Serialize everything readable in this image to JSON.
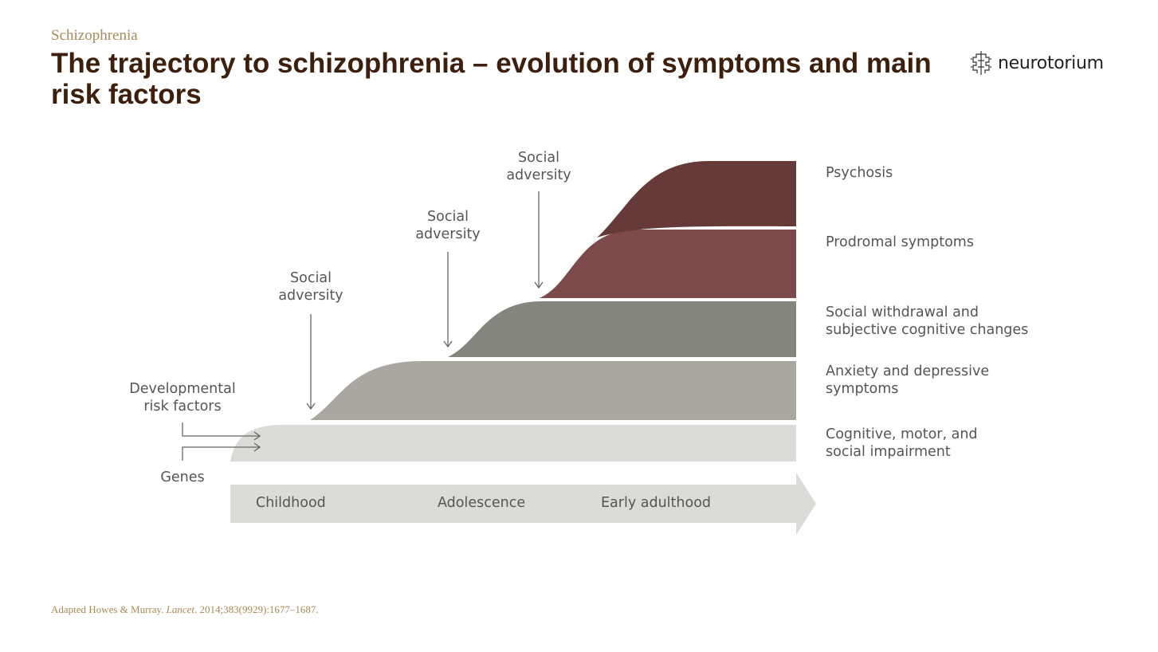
{
  "header": {
    "category": "Schizophrenia",
    "title": "The trajectory to schizophrenia  – evolution of symptoms and main risk factors",
    "logo_text": "neurotorium"
  },
  "diagram": {
    "stages": [
      {
        "label": "Psychosis",
        "color": "#653a38"
      },
      {
        "label": "Prodromal symptoms",
        "color": "#7c4a4b"
      },
      {
        "label": "Social withdrawal and\nsubjective cognitive changes",
        "color": "#85847d"
      },
      {
        "label": "Anxiety and depressive\nsymptoms",
        "color": "#a9a7a0"
      },
      {
        "label": "Cognitive, motor, and\nsocial impairment",
        "color": "#dcdbd8"
      }
    ],
    "social_adversity": [
      {
        "label": "Social\nadversity"
      },
      {
        "label": "Social\nadversity"
      },
      {
        "label": "Social\nadversity"
      }
    ],
    "risk_factors": {
      "developmental": "Developmental\nrisk factors",
      "genes": "Genes"
    },
    "timeline": {
      "color": "#dcdbd8",
      "phases": [
        "Childhood",
        "Adolescence",
        "Early adulthood"
      ]
    }
  },
  "footer": {
    "citation_prefix": "Adapted Howes & Murray. ",
    "journal": "Lancet",
    "citation_suffix": ". 2014;383(9929):1677–1687."
  }
}
